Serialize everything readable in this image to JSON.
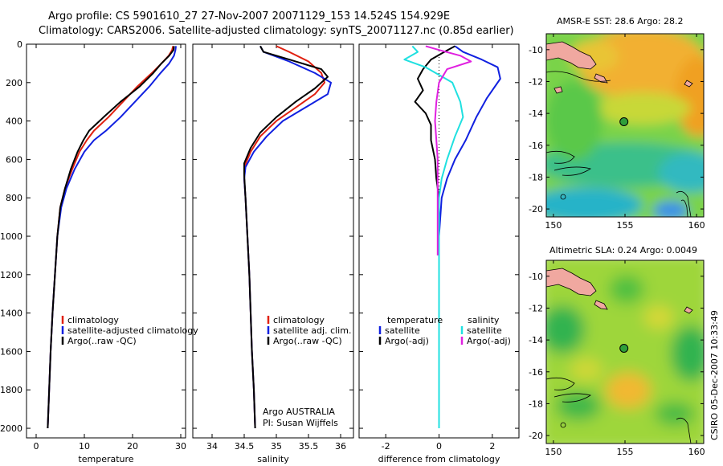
{
  "figure": {
    "title_line1": "Argo profile: CS 5901610_27 27-Nov-2007 20071129_153 14.524S 154.929E",
    "title_line2": "Climatology: CARS2006. Satellite-adjusted climatology: synTS_20071127.nc (0.85d earlier)",
    "credit": "CSIRO 05-Dec-2007 10:33:49",
    "argo_note_line1": "Argo AUSTRALIA",
    "argo_note_line2": "PI: Susan Wijffels"
  },
  "colors": {
    "climatology": "#e02010",
    "satellite": "#1020e0",
    "argo": "#000000",
    "satellite_diff": "#20e0e0",
    "salinity_diff": "#e020e0"
  },
  "chart_data": [
    {
      "type": "line",
      "name": "temperature",
      "xlabel": "temperature",
      "ylabel": "",
      "xlim": [
        -2,
        31
      ],
      "ylim": [
        2050,
        0
      ],
      "xticks": [
        0,
        10,
        20,
        30
      ],
      "yticks": [
        0,
        200,
        400,
        600,
        800,
        1000,
        1200,
        1400,
        1600,
        1800,
        2000
      ],
      "legend": "lower-center",
      "series": [
        {
          "name": "climatology",
          "color_key": "climatology",
          "points": [
            [
              28.4,
              10
            ],
            [
              28.2,
              30
            ],
            [
              27.5,
              60
            ],
            [
              26.0,
              100
            ],
            [
              24.0,
              150
            ],
            [
              21.0,
              220
            ],
            [
              18.0,
              300
            ],
            [
              15.0,
              380
            ],
            [
              12.0,
              450
            ],
            [
              10.5,
              500
            ],
            [
              9.0,
              560
            ],
            [
              7.5,
              650
            ],
            [
              6.0,
              750
            ],
            [
              5.0,
              850
            ],
            [
              4.4,
              1000
            ],
            [
              3.9,
              1200
            ],
            [
              3.4,
              1400
            ],
            [
              3.0,
              1600
            ],
            [
              2.7,
              1800
            ],
            [
              2.4,
              2000
            ]
          ]
        },
        {
          "name": "satellite-adjusted climatology",
          "color_key": "satellite",
          "points": [
            [
              29.0,
              10
            ],
            [
              28.9,
              30
            ],
            [
              28.6,
              60
            ],
            [
              27.6,
              100
            ],
            [
              25.8,
              150
            ],
            [
              23.5,
              220
            ],
            [
              20.5,
              300
            ],
            [
              17.5,
              380
            ],
            [
              14.5,
              450
            ],
            [
              12.0,
              500
            ],
            [
              10.0,
              560
            ],
            [
              8.0,
              650
            ],
            [
              6.3,
              750
            ],
            [
              5.2,
              850
            ],
            [
              4.4,
              1000
            ],
            [
              3.9,
              1200
            ],
            [
              3.4,
              1400
            ],
            [
              3.0,
              1600
            ],
            [
              2.7,
              1800
            ],
            [
              2.4,
              2000
            ]
          ]
        },
        {
          "name": "Argo(..raw -QC)",
          "color_key": "argo",
          "points": [
            [
              28.6,
              10
            ],
            [
              28.5,
              30
            ],
            [
              27.6,
              60
            ],
            [
              26.0,
              100
            ],
            [
              24.3,
              150
            ],
            [
              21.5,
              220
            ],
            [
              17.5,
              300
            ],
            [
              14.0,
              380
            ],
            [
              11.0,
              450
            ],
            [
              9.8,
              500
            ],
            [
              8.6,
              560
            ],
            [
              7.2,
              650
            ],
            [
              6.0,
              750
            ],
            [
              5.0,
              850
            ],
            [
              4.4,
              1000
            ],
            [
              3.9,
              1200
            ],
            [
              3.4,
              1400
            ],
            [
              3.0,
              1600
            ],
            [
              2.7,
              1800
            ],
            [
              2.4,
              2000
            ]
          ]
        }
      ],
      "legend_entries": [
        "climatology",
        "satellite-adjusted climatology",
        "Argo(..raw -QC)"
      ]
    },
    {
      "type": "line",
      "name": "salinity",
      "xlabel": "salinity",
      "ylabel": "",
      "xlim": [
        33.7,
        36.2
      ],
      "ylim": [
        2050,
        0
      ],
      "xticks": [
        34,
        34.5,
        35,
        35.5,
        36
      ],
      "xtick_labels": [
        "34",
        "34.5",
        "35",
        "35.5",
        "36"
      ],
      "legend": "lower-center",
      "series": [
        {
          "name": "climatology",
          "color_key": "climatology",
          "points": [
            [
              35.0,
              10
            ],
            [
              35.2,
              40
            ],
            [
              35.5,
              90
            ],
            [
              35.7,
              150
            ],
            [
              35.75,
              200
            ],
            [
              35.6,
              260
            ],
            [
              35.3,
              330
            ],
            [
              35.0,
              400
            ],
            [
              34.75,
              480
            ],
            [
              34.6,
              560
            ],
            [
              34.5,
              640
            ],
            [
              34.5,
              700
            ],
            [
              34.52,
              800
            ],
            [
              34.55,
              1000
            ],
            [
              34.58,
              1200
            ],
            [
              34.6,
              1400
            ],
            [
              34.62,
              1600
            ],
            [
              34.65,
              1800
            ],
            [
              34.67,
              2000
            ]
          ]
        },
        {
          "name": "satellite adj. clim.",
          "color_key": "satellite",
          "points": [
            [
              34.75,
              10
            ],
            [
              34.8,
              40
            ],
            [
              35.2,
              90
            ],
            [
              35.6,
              150
            ],
            [
              35.85,
              200
            ],
            [
              35.8,
              260
            ],
            [
              35.45,
              330
            ],
            [
              35.1,
              400
            ],
            [
              34.85,
              480
            ],
            [
              34.65,
              560
            ],
            [
              34.52,
              640
            ],
            [
              34.5,
              700
            ],
            [
              34.52,
              800
            ],
            [
              34.55,
              1000
            ],
            [
              34.58,
              1200
            ],
            [
              34.6,
              1400
            ],
            [
              34.62,
              1600
            ],
            [
              34.65,
              1800
            ],
            [
              34.67,
              2000
            ]
          ]
        },
        {
          "name": "Argo(..raw -QC)",
          "color_key": "argo",
          "points": [
            [
              34.75,
              10
            ],
            [
              34.8,
              40
            ],
            [
              35.2,
              80
            ],
            [
              35.7,
              130
            ],
            [
              35.8,
              170
            ],
            [
              35.6,
              230
            ],
            [
              35.3,
              300
            ],
            [
              35.0,
              380
            ],
            [
              34.75,
              460
            ],
            [
              34.6,
              540
            ],
            [
              34.5,
              620
            ],
            [
              34.5,
              680
            ],
            [
              34.52,
              800
            ],
            [
              34.55,
              1000
            ],
            [
              34.58,
              1200
            ],
            [
              34.6,
              1400
            ],
            [
              34.62,
              1600
            ],
            [
              34.65,
              1800
            ],
            [
              34.67,
              2000
            ]
          ]
        }
      ],
      "legend_entries": [
        "climatology",
        "satellite adj. clim.",
        "Argo(..raw -QC)"
      ]
    },
    {
      "type": "line",
      "name": "difference",
      "xlabel": "difference from climatology",
      "ylabel": "",
      "xlim": [
        -3.0,
        3.0
      ],
      "ylim": [
        2050,
        0
      ],
      "xticks": [
        -2,
        0,
        2
      ],
      "legend": "lower-center",
      "legend_headers": [
        "temperature",
        "salinity"
      ],
      "series": [
        {
          "name": "satellite",
          "group": "temperature",
          "color_key": "satellite",
          "points": [
            [
              0.6,
              10
            ],
            [
              0.9,
              40
            ],
            [
              1.6,
              80
            ],
            [
              2.2,
              120
            ],
            [
              2.3,
              180
            ],
            [
              1.8,
              280
            ],
            [
              1.4,
              380
            ],
            [
              1.0,
              500
            ],
            [
              0.6,
              600
            ],
            [
              0.3,
              700
            ],
            [
              0.1,
              800
            ],
            [
              0.0,
              1000
            ],
            [
              0.0,
              1200
            ],
            [
              0.0,
              1400
            ],
            [
              0.0,
              1600
            ],
            [
              0.0,
              1800
            ],
            [
              0.0,
              2000
            ]
          ]
        },
        {
          "name": "Argo(-adj)",
          "group": "temperature",
          "color_key": "argo",
          "points": [
            [
              0.6,
              10
            ],
            [
              0.2,
              40
            ],
            [
              -0.3,
              80
            ],
            [
              -0.6,
              130
            ],
            [
              -0.8,
              180
            ],
            [
              -0.6,
              240
            ],
            [
              -0.9,
              300
            ],
            [
              -0.5,
              360
            ],
            [
              -0.3,
              420
            ],
            [
              -0.3,
              500
            ],
            [
              -0.15,
              600
            ],
            [
              -0.1,
              700
            ],
            [
              0.0,
              800
            ],
            [
              0.0,
              1000
            ],
            [
              0.0,
              1200
            ],
            [
              0.0,
              1400
            ],
            [
              0.0,
              1600
            ],
            [
              0.0,
              1800
            ],
            [
              0.0,
              2000
            ]
          ]
        },
        {
          "name": "satellite",
          "group": "salinity",
          "color_key": "satellite_diff",
          "points": [
            [
              -1.0,
              10
            ],
            [
              -0.8,
              40
            ],
            [
              -1.3,
              80
            ],
            [
              -0.5,
              120
            ],
            [
              0.5,
              200
            ],
            [
              0.8,
              300
            ],
            [
              0.9,
              380
            ],
            [
              0.6,
              480
            ],
            [
              0.3,
              600
            ],
            [
              0.1,
              700
            ],
            [
              0.0,
              800
            ],
            [
              0.0,
              1000
            ],
            [
              0.0,
              1200
            ],
            [
              0.0,
              1400
            ],
            [
              0.0,
              1600
            ],
            [
              0.0,
              1800
            ],
            [
              0.0,
              2000
            ]
          ]
        },
        {
          "name": "Argo(-adj)",
          "group": "salinity",
          "color_key": "salinity_diff",
          "points": [
            [
              -0.5,
              10
            ],
            [
              0.0,
              30
            ],
            [
              0.8,
              60
            ],
            [
              1.2,
              90
            ],
            [
              0.3,
              130
            ],
            [
              0.0,
              200
            ],
            [
              -0.1,
              300
            ],
            [
              -0.15,
              400
            ],
            [
              -0.1,
              500
            ],
            [
              -0.05,
              600
            ],
            [
              -0.05,
              700
            ],
            [
              -0.05,
              800
            ],
            [
              -0.05,
              900
            ],
            [
              -0.05,
              1000
            ],
            [
              -0.05,
              1100
            ]
          ]
        }
      ],
      "legend_entries": [
        "satellite",
        "Argo(-adj)",
        "satellite",
        "Argo(-adj)"
      ]
    },
    {
      "type": "heatmap",
      "name": "sst-map",
      "title": "AMSR-E SST: 28.6  Argo: 28.2",
      "xlim": [
        149.5,
        160.5
      ],
      "ylim": [
        -20.5,
        -9.0
      ],
      "xticks": [
        150,
        155,
        160
      ],
      "yticks": [
        -10,
        -12,
        -14,
        -16,
        -18,
        -20
      ],
      "argo_marker": [
        154.929,
        -14.524
      ]
    },
    {
      "type": "heatmap",
      "name": "sla-map",
      "title": "Altimetric SLA: 0.24  Argo: 0.0049",
      "xlim": [
        149.5,
        160.5
      ],
      "ylim": [
        -20.5,
        -9.0
      ],
      "xticks": [
        150,
        155,
        160
      ],
      "yticks": [
        -10,
        -12,
        -14,
        -16,
        -18,
        -20
      ],
      "argo_marker": [
        154.929,
        -14.524
      ]
    }
  ]
}
